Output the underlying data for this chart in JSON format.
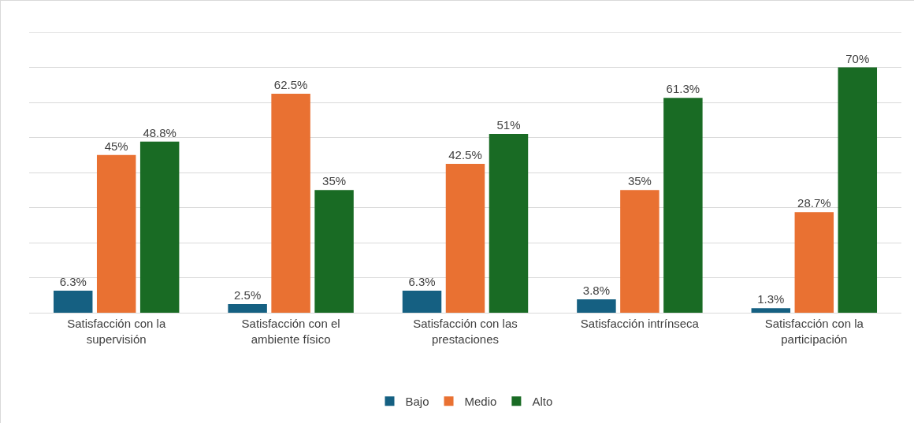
{
  "chart_data": {
    "type": "bar",
    "categories": [
      "Satisfacción con la supervisión",
      "Satisfacción con el ambiente físico",
      "Satisfacción con las prestaciones",
      "Satisfacción intrínseca",
      "Satisfacción con la participación"
    ],
    "series": [
      {
        "name": "Bajo",
        "color": "#156082",
        "values": [
          6.3,
          2.5,
          6.3,
          3.8,
          1.3
        ],
        "value_labels": [
          "6.3%",
          "2.5%",
          "6.3%",
          "3.8%",
          "1.3%"
        ]
      },
      {
        "name": "Medio",
        "color": "#e97132",
        "values": [
          45,
          62.5,
          42.5,
          35,
          28.7
        ],
        "value_labels": [
          "45%",
          "62.5%",
          "42.5%",
          "35%",
          "28.7%"
        ]
      },
      {
        "name": "Alto",
        "color": "#196b24",
        "values": [
          48.8,
          35,
          51,
          61.3,
          70
        ],
        "value_labels": [
          "48.8%",
          "35%",
          "51%",
          "61.3%",
          "70%"
        ]
      }
    ],
    "ylim": [
      0,
      80
    ],
    "yticks": [
      {
        "value": 0,
        "label": null
      },
      {
        "value": 10,
        "label": null
      },
      {
        "value": 20,
        "label": null
      },
      {
        "value": 30,
        "label": null
      },
      {
        "value": 40,
        "label": null
      },
      {
        "value": 50,
        "label": null
      },
      {
        "value": 60,
        "label": null
      },
      {
        "value": 70,
        "label": null
      },
      {
        "value": 80,
        "label": null
      }
    ],
    "tick_labels": "x",
    "grid": "y",
    "legend": "bottom"
  }
}
